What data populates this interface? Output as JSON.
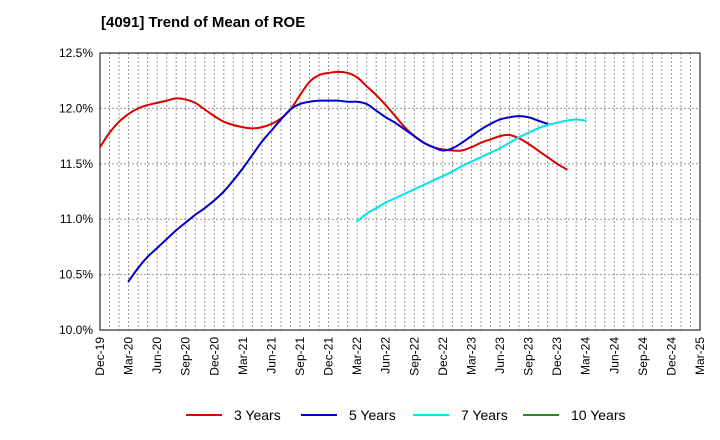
{
  "chart_data": {
    "type": "line",
    "title": "[4091]  Trend of Mean of ROE",
    "xlabel": "",
    "ylabel": "",
    "x_ticks": [
      "Dec-19",
      "Mar-20",
      "Jun-20",
      "Sep-20",
      "Dec-20",
      "Mar-21",
      "Jun-21",
      "Sep-21",
      "Dec-21",
      "Mar-22",
      "Jun-22",
      "Sep-22",
      "Dec-22",
      "Mar-23",
      "Jun-23",
      "Sep-23",
      "Dec-23",
      "Mar-24",
      "Jun-24",
      "Sep-24",
      "Dec-24",
      "Mar-25"
    ],
    "y_ticks": [
      "10.0%",
      "10.5%",
      "11.0%",
      "11.5%",
      "12.0%",
      "12.5%"
    ],
    "ylim": [
      10.0,
      12.5
    ],
    "grid": true,
    "legend_position": "bottom",
    "series": [
      {
        "name": "3 Years",
        "color": "#dd0000",
        "start": "Dec-19",
        "values": [
          11.65,
          11.78,
          11.88,
          11.95,
          12.0,
          12.03,
          12.05,
          12.07,
          12.09,
          12.08,
          12.05,
          11.99,
          11.93,
          11.88,
          11.85,
          11.83,
          11.82,
          11.83,
          11.86,
          11.91,
          11.99,
          12.12,
          12.24,
          12.3,
          12.32,
          12.33,
          12.32,
          12.28,
          12.2,
          12.12,
          12.03,
          11.93,
          11.83,
          11.75,
          11.69,
          11.65,
          11.63,
          11.62,
          11.62,
          11.65,
          11.69,
          11.72,
          11.75,
          11.76,
          11.73,
          11.68,
          11.62,
          11.56,
          11.5,
          11.45
        ]
      },
      {
        "name": "5 Years",
        "color": "#0000cc",
        "start": "Mar-20",
        "values": [
          10.44,
          10.56,
          10.66,
          10.74,
          10.82,
          10.9,
          10.97,
          11.04,
          11.1,
          11.17,
          11.25,
          11.35,
          11.46,
          11.58,
          11.7,
          11.8,
          11.9,
          11.99,
          12.04,
          12.06,
          12.07,
          12.07,
          12.07,
          12.06,
          12.06,
          12.04,
          11.98,
          11.92,
          11.87,
          11.81,
          11.75,
          11.69,
          11.65,
          11.62,
          11.64,
          11.69,
          11.75,
          11.81,
          11.86,
          11.9,
          11.92,
          11.93,
          11.92,
          11.89,
          11.86
        ]
      },
      {
        "name": "7 Years",
        "color": "#00e5e5",
        "start": "Mar-22",
        "values": [
          10.98,
          11.05,
          11.1,
          11.15,
          11.19,
          11.23,
          11.27,
          11.31,
          11.35,
          11.39,
          11.43,
          11.48,
          11.52,
          11.56,
          11.6,
          11.64,
          11.69,
          11.74,
          11.78,
          11.82,
          11.85,
          11.87,
          11.89,
          11.9,
          11.89
        ]
      },
      {
        "name": "10 Years",
        "color": "#228b22",
        "start": "Dec-24",
        "values": []
      }
    ]
  }
}
